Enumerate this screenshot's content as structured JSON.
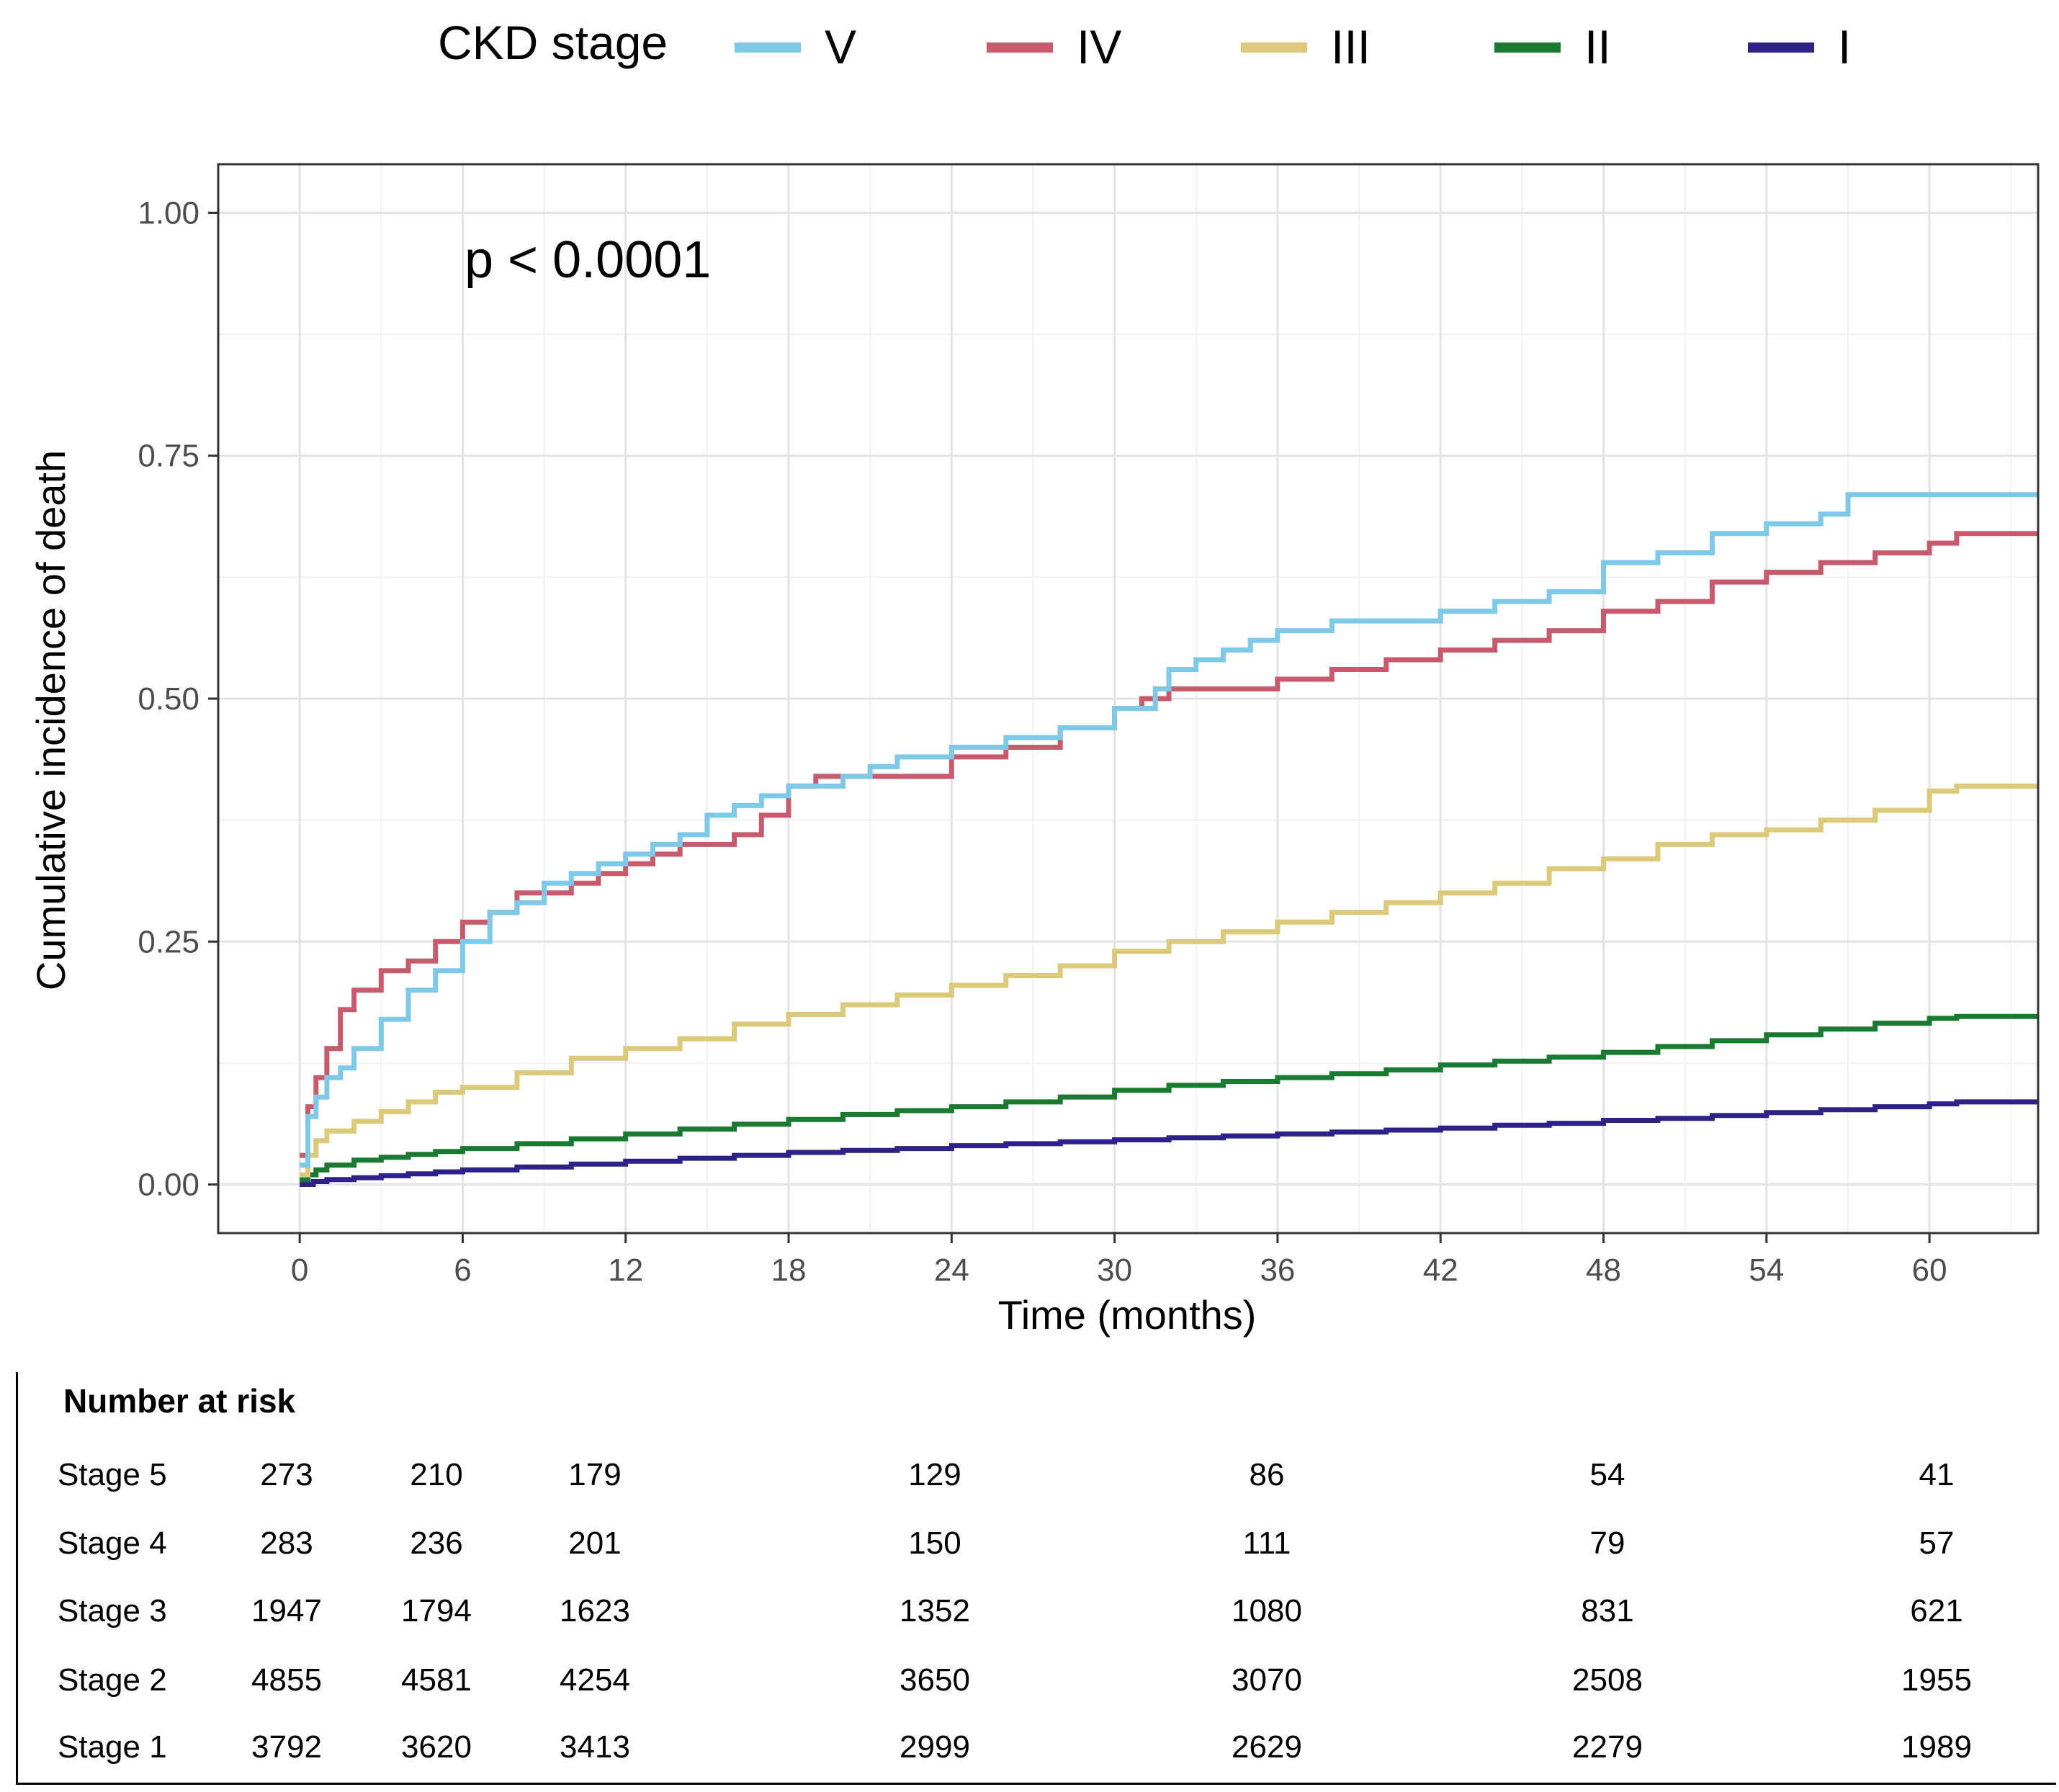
{
  "chart_data": {
    "type": "line",
    "legend": {
      "title": "CKD stage",
      "entries": [
        {
          "label": "V",
          "color": "#7ec8e8"
        },
        {
          "label": "IV",
          "color": "#c85a6e"
        },
        {
          "label": "III",
          "color": "#ddc97a"
        },
        {
          "label": "II",
          "color": "#1a7a32"
        },
        {
          "label": "I",
          "color": "#2e2288"
        }
      ],
      "position": "top"
    },
    "annotation": "p < 0.0001",
    "xlabel": "Time (months)",
    "ylabel": "Cumulative incidence of death",
    "xlim": [
      -3,
      64
    ],
    "ylim": [
      -0.05,
      1.05
    ],
    "xticks": [
      "0",
      "6",
      "12",
      "18",
      "24",
      "30",
      "36",
      "42",
      "48",
      "54",
      "60"
    ],
    "xtick_values": [
      0,
      6,
      12,
      18,
      24,
      30,
      36,
      42,
      48,
      54,
      60
    ],
    "yticks": [
      "0.00",
      "0.25",
      "0.50",
      "0.75",
      "1.00"
    ],
    "ytick_values": [
      0,
      0.25,
      0.5,
      0.75,
      1.0
    ],
    "grid": true,
    "series": [
      {
        "name": "V",
        "color": "#7ec8e8",
        "x": [
          0,
          0.3,
          0.6,
          1,
          1.5,
          2,
          3,
          4,
          5,
          6,
          7,
          8,
          9,
          10,
          11,
          12,
          13,
          14,
          15,
          16,
          17,
          18,
          19,
          20,
          21,
          22,
          23,
          24,
          26,
          28,
          30,
          31.5,
          32,
          33,
          34,
          35,
          36,
          38,
          40,
          42,
          44,
          46,
          48,
          50,
          52,
          54,
          56,
          57,
          58,
          60,
          64
        ],
        "y": [
          0.02,
          0.07,
          0.09,
          0.11,
          0.12,
          0.14,
          0.17,
          0.2,
          0.22,
          0.25,
          0.28,
          0.29,
          0.31,
          0.32,
          0.33,
          0.34,
          0.35,
          0.36,
          0.38,
          0.39,
          0.4,
          0.41,
          0.41,
          0.42,
          0.43,
          0.44,
          0.44,
          0.45,
          0.46,
          0.47,
          0.49,
          0.51,
          0.53,
          0.54,
          0.55,
          0.56,
          0.57,
          0.58,
          0.58,
          0.59,
          0.6,
          0.61,
          0.64,
          0.65,
          0.67,
          0.68,
          0.69,
          0.71,
          0.71,
          0.71,
          0.71
        ]
      },
      {
        "name": "IV",
        "color": "#c85a6e",
        "x": [
          0,
          0.3,
          0.6,
          1,
          1.5,
          2,
          3,
          4,
          5,
          6,
          7,
          8,
          9,
          10,
          11,
          12,
          13,
          14,
          15,
          16,
          17,
          18,
          19,
          20,
          22,
          24,
          26,
          28,
          30,
          31,
          32,
          34,
          36,
          38,
          40,
          42,
          44,
          46,
          48,
          50,
          52,
          54,
          56,
          58,
          60,
          61,
          64
        ],
        "y": [
          0.03,
          0.08,
          0.11,
          0.14,
          0.18,
          0.2,
          0.22,
          0.23,
          0.25,
          0.27,
          0.28,
          0.3,
          0.3,
          0.31,
          0.32,
          0.33,
          0.34,
          0.35,
          0.35,
          0.36,
          0.38,
          0.41,
          0.42,
          0.42,
          0.42,
          0.44,
          0.45,
          0.47,
          0.49,
          0.5,
          0.51,
          0.51,
          0.52,
          0.53,
          0.54,
          0.55,
          0.56,
          0.57,
          0.59,
          0.6,
          0.62,
          0.63,
          0.64,
          0.65,
          0.66,
          0.67,
          0.67
        ]
      },
      {
        "name": "III",
        "color": "#ddc97a",
        "x": [
          0,
          0.3,
          0.6,
          1,
          2,
          3,
          4,
          5,
          6,
          8,
          10,
          12,
          14,
          16,
          18,
          20,
          22,
          24,
          26,
          28,
          30,
          32,
          34,
          36,
          38,
          40,
          42,
          44,
          46,
          48,
          50,
          52,
          54,
          56,
          58,
          60,
          61,
          64
        ],
        "y": [
          0.01,
          0.03,
          0.045,
          0.055,
          0.065,
          0.075,
          0.085,
          0.095,
          0.1,
          0.115,
          0.13,
          0.14,
          0.15,
          0.165,
          0.175,
          0.185,
          0.195,
          0.205,
          0.215,
          0.225,
          0.24,
          0.25,
          0.26,
          0.27,
          0.28,
          0.29,
          0.3,
          0.31,
          0.325,
          0.335,
          0.35,
          0.36,
          0.365,
          0.375,
          0.385,
          0.405,
          0.41,
          0.41
        ]
      },
      {
        "name": "II",
        "color": "#1a7a32",
        "x": [
          0,
          0.3,
          0.6,
          1,
          2,
          3,
          4,
          5,
          6,
          8,
          10,
          12,
          14,
          16,
          18,
          20,
          22,
          24,
          26,
          28,
          30,
          32,
          34,
          36,
          38,
          40,
          42,
          44,
          46,
          48,
          50,
          52,
          54,
          56,
          58,
          60,
          61,
          64
        ],
        "y": [
          0.005,
          0.01,
          0.015,
          0.02,
          0.025,
          0.028,
          0.031,
          0.034,
          0.037,
          0.042,
          0.047,
          0.052,
          0.057,
          0.062,
          0.067,
          0.072,
          0.076,
          0.08,
          0.085,
          0.09,
          0.097,
          0.102,
          0.106,
          0.11,
          0.114,
          0.118,
          0.123,
          0.127,
          0.131,
          0.136,
          0.142,
          0.148,
          0.154,
          0.16,
          0.166,
          0.171,
          0.173,
          0.173
        ]
      },
      {
        "name": "I",
        "color": "#2e2288",
        "x": [
          0,
          0.5,
          1,
          2,
          3,
          4,
          5,
          6,
          8,
          10,
          12,
          14,
          16,
          18,
          20,
          22,
          24,
          26,
          28,
          30,
          32,
          34,
          36,
          38,
          40,
          42,
          44,
          46,
          48,
          50,
          52,
          54,
          56,
          58,
          60,
          61,
          64
        ],
        "y": [
          0.0,
          0.003,
          0.005,
          0.007,
          0.009,
          0.011,
          0.013,
          0.015,
          0.018,
          0.021,
          0.024,
          0.027,
          0.03,
          0.033,
          0.035,
          0.037,
          0.04,
          0.042,
          0.044,
          0.046,
          0.048,
          0.05,
          0.052,
          0.054,
          0.056,
          0.058,
          0.061,
          0.063,
          0.066,
          0.068,
          0.071,
          0.074,
          0.077,
          0.08,
          0.083,
          0.085,
          0.085
        ]
      }
    ]
  },
  "risk_table": {
    "title": "Number at risk",
    "rows": [
      {
        "label": "Stage 5",
        "values": [
          "273",
          "210",
          "179",
          "129",
          "86",
          "54",
          "41"
        ]
      },
      {
        "label": "Stage 4",
        "values": [
          "283",
          "236",
          "201",
          "150",
          "111",
          "79",
          "57"
        ]
      },
      {
        "label": "Stage 3",
        "values": [
          "1947",
          "1794",
          "1623",
          "1352",
          "1080",
          "831",
          "621"
        ]
      },
      {
        "label": "Stage 2",
        "values": [
          "4855",
          "4581",
          "4254",
          "3650",
          "3070",
          "2508",
          "1955"
        ]
      },
      {
        "label": "Stage 1",
        "values": [
          "3792",
          "3620",
          "3413",
          "2999",
          "2629",
          "2279",
          "1989"
        ]
      }
    ]
  }
}
